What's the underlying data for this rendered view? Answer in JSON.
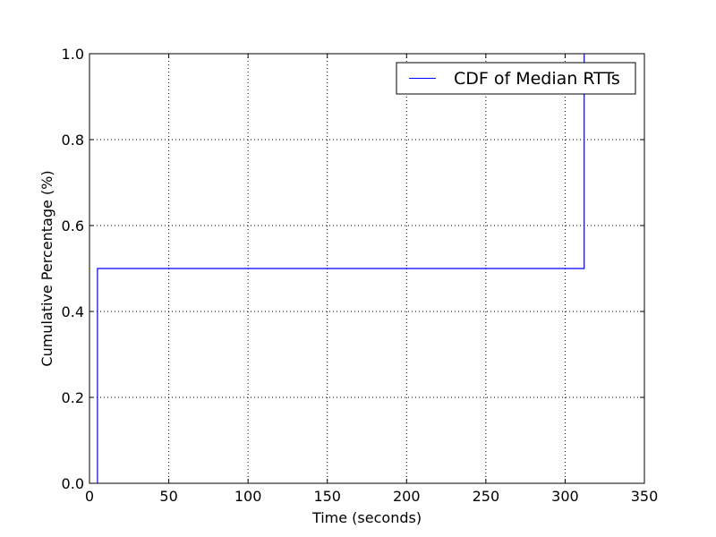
{
  "chart_data": {
    "type": "line",
    "step": true,
    "xlabel": "Time (seconds)",
    "ylabel": "Cumulative Percentage (%)",
    "xlim": [
      0,
      350
    ],
    "ylim": [
      0.0,
      1.0
    ],
    "x_ticks": [
      "0",
      "50",
      "100",
      "150",
      "200",
      "250",
      "300",
      "350"
    ],
    "y_ticks": [
      "0.0",
      "0.2",
      "0.4",
      "0.6",
      "0.8",
      "1.0"
    ],
    "grid": true,
    "legend_position": "top-right",
    "series": [
      {
        "name": "CDF of Median RTTs",
        "color": "#0000ff",
        "x": [
          5,
          5,
          312,
          312
        ],
        "y": [
          0.0,
          0.5,
          0.5,
          1.0
        ]
      }
    ]
  }
}
